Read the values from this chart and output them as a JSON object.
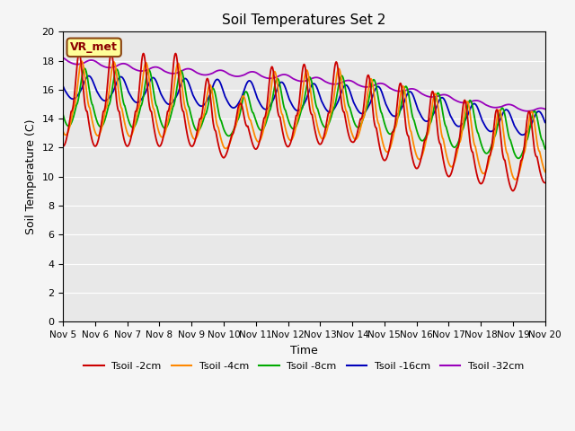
{
  "title": "Soil Temperatures Set 2",
  "xlabel": "Time",
  "ylabel": "Soil Temperature (C)",
  "xlim": [
    0,
    15
  ],
  "ylim": [
    0,
    20
  ],
  "yticks": [
    0,
    2,
    4,
    6,
    8,
    10,
    12,
    14,
    16,
    18,
    20
  ],
  "xtick_labels": [
    "Nov 5",
    "Nov 6",
    "Nov 7",
    "Nov 8",
    "Nov 9",
    "Nov 10",
    "Nov 11",
    "Nov 12",
    "Nov 13",
    "Nov 14",
    "Nov 15",
    "Nov 16",
    "Nov 17",
    "Nov 18",
    "Nov 19",
    "Nov 20"
  ],
  "colors": {
    "2cm": "#cc0000",
    "4cm": "#ff8800",
    "8cm": "#00aa00",
    "16cm": "#0000bb",
    "32cm": "#9900bb"
  },
  "legend_labels": [
    "Tsoil -2cm",
    "Tsoil -4cm",
    "Tsoil -8cm",
    "Tsoil -16cm",
    "Tsoil -32cm"
  ],
  "bg_color": "#e8e8e8",
  "annotation_text": "VR_met",
  "annotation_box_color": "#ffff99",
  "annotation_border_color": "#8b4513"
}
